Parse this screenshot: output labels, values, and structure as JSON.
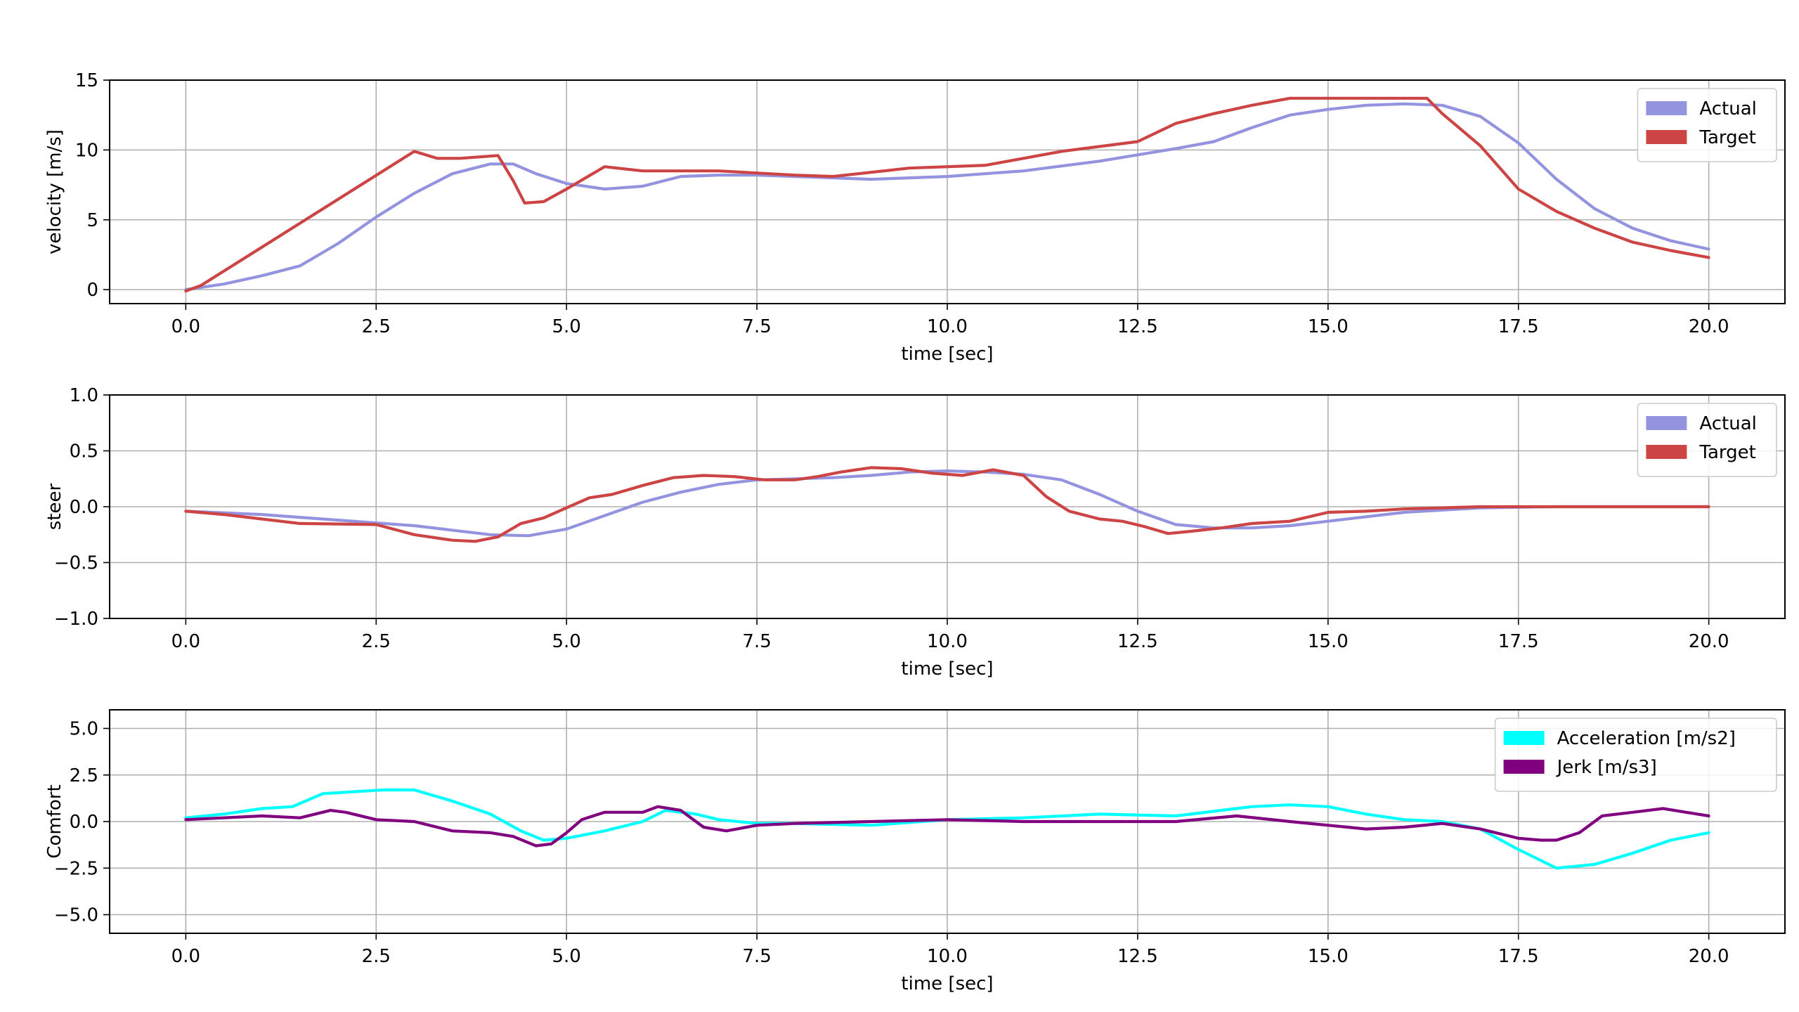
{
  "chart_data": [
    {
      "type": "line",
      "xlabel": "time [sec]",
      "ylabel": "velocity [m/s]",
      "xlim": [
        -1.0,
        21.0
      ],
      "ylim": [
        -1.0,
        15.0
      ],
      "xticks": [
        0.0,
        2.5,
        5.0,
        7.5,
        10.0,
        12.5,
        15.0,
        17.5,
        20.0
      ],
      "xtick_labels": [
        "0.0",
        "2.5",
        "5.0",
        "7.5",
        "10.0",
        "12.5",
        "15.0",
        "17.5",
        "20.0"
      ],
      "yticks": [
        0,
        5,
        10,
        15
      ],
      "ytick_labels": [
        "0",
        "5",
        "10",
        "15"
      ],
      "grid": true,
      "legend": "top-right",
      "series": [
        {
          "name": "Actual",
          "color": "#9393e0",
          "x": [
            0,
            0.5,
            1.0,
            1.5,
            2.0,
            2.5,
            3.0,
            3.5,
            4.0,
            4.3,
            4.6,
            5.0,
            5.5,
            6.0,
            6.5,
            7.0,
            7.5,
            8.0,
            9.0,
            10.0,
            11.0,
            12.0,
            13.0,
            13.5,
            14.0,
            14.5,
            15.0,
            15.5,
            16.0,
            16.5,
            17.0,
            17.5,
            18.0,
            18.5,
            19.0,
            19.5,
            20.0
          ],
          "y": [
            0,
            0.4,
            1.0,
            1.7,
            3.3,
            5.2,
            6.9,
            8.3,
            9.0,
            9.0,
            8.3,
            7.6,
            7.2,
            7.4,
            8.1,
            8.2,
            8.2,
            8.1,
            7.9,
            8.1,
            8.5,
            9.2,
            10.1,
            10.6,
            11.6,
            12.5,
            12.9,
            13.2,
            13.3,
            13.2,
            12.4,
            10.5,
            7.9,
            5.8,
            4.4,
            3.5,
            2.9
          ]
        },
        {
          "name": "Target",
          "color": "#cc4444",
          "x": [
            0,
            0.2,
            3.0,
            3.3,
            3.6,
            4.1,
            4.3,
            4.45,
            4.7,
            5.0,
            5.5,
            6.0,
            7.0,
            8.0,
            8.5,
            9.5,
            10.5,
            11.5,
            12.5,
            13.0,
            13.5,
            14.0,
            14.5,
            15.0,
            16.0,
            16.3,
            16.5,
            17.0,
            17.5,
            18.0,
            18.5,
            19.0,
            19.5,
            20.0
          ],
          "y": [
            -0.1,
            0.3,
            9.9,
            9.4,
            9.4,
            9.6,
            7.8,
            6.2,
            6.3,
            7.2,
            8.8,
            8.5,
            8.5,
            8.2,
            8.1,
            8.7,
            8.9,
            9.9,
            10.6,
            11.9,
            12.6,
            13.2,
            13.7,
            13.7,
            13.7,
            13.7,
            12.6,
            10.3,
            7.2,
            5.6,
            4.4,
            3.4,
            2.8,
            2.3
          ]
        }
      ]
    },
    {
      "type": "line",
      "xlabel": "time [sec]",
      "ylabel": "steer",
      "xlim": [
        -1.0,
        21.0
      ],
      "ylim": [
        -1.0,
        1.0
      ],
      "xticks": [
        0.0,
        2.5,
        5.0,
        7.5,
        10.0,
        12.5,
        15.0,
        17.5,
        20.0
      ],
      "xtick_labels": [
        "0.0",
        "2.5",
        "5.0",
        "7.5",
        "10.0",
        "12.5",
        "15.0",
        "17.5",
        "20.0"
      ],
      "yticks": [
        -1.0,
        -0.5,
        0.0,
        0.5,
        1.0
      ],
      "ytick_labels": [
        "−1.0",
        "−0.5",
        "0.0",
        "0.5",
        "1.0"
      ],
      "grid": true,
      "legend": "top-right",
      "series": [
        {
          "name": "Actual",
          "color": "#9393e0",
          "x": [
            0,
            1.0,
            2.0,
            3.0,
            3.5,
            4.0,
            4.5,
            5.0,
            5.5,
            6.0,
            6.5,
            7.0,
            7.5,
            8.0,
            8.5,
            9.0,
            9.5,
            10.0,
            10.5,
            11.0,
            11.5,
            12.0,
            12.5,
            13.0,
            13.5,
            14.0,
            14.5,
            15.0,
            15.5,
            16.0,
            17.0,
            18.0,
            19.0,
            20.0
          ],
          "y": [
            -0.04,
            -0.07,
            -0.12,
            -0.17,
            -0.21,
            -0.25,
            -0.26,
            -0.2,
            -0.08,
            0.04,
            0.13,
            0.2,
            0.24,
            0.25,
            0.26,
            0.28,
            0.31,
            0.32,
            0.31,
            0.29,
            0.24,
            0.11,
            -0.04,
            -0.16,
            -0.19,
            -0.19,
            -0.17,
            -0.13,
            -0.09,
            -0.05,
            -0.01,
            0.0,
            0.0,
            0.0
          ]
        },
        {
          "name": "Target",
          "color": "#cc4444",
          "x": [
            0,
            0.5,
            1.0,
            1.5,
            2.5,
            3.0,
            3.5,
            3.8,
            4.1,
            4.4,
            4.7,
            5.0,
            5.3,
            5.6,
            6.0,
            6.4,
            6.8,
            7.2,
            7.6,
            8.0,
            8.3,
            8.6,
            9.0,
            9.4,
            9.8,
            10.2,
            10.6,
            11.0,
            11.3,
            11.6,
            12.0,
            12.3,
            12.6,
            12.9,
            13.2,
            13.6,
            14.0,
            14.5,
            15.0,
            15.5,
            16.0,
            16.5,
            17.0,
            18.0,
            20.0
          ],
          "y": [
            -0.04,
            -0.07,
            -0.11,
            -0.15,
            -0.16,
            -0.25,
            -0.3,
            -0.31,
            -0.27,
            -0.15,
            -0.1,
            -0.01,
            0.08,
            0.11,
            0.19,
            0.26,
            0.28,
            0.27,
            0.24,
            0.24,
            0.27,
            0.31,
            0.35,
            0.34,
            0.3,
            0.28,
            0.33,
            0.28,
            0.09,
            -0.04,
            -0.11,
            -0.13,
            -0.18,
            -0.24,
            -0.22,
            -0.19,
            -0.15,
            -0.13,
            -0.05,
            -0.04,
            -0.02,
            -0.01,
            0.0,
            0.0,
            0.0
          ]
        }
      ]
    },
    {
      "type": "line",
      "xlabel": "time [sec]",
      "ylabel": "Comfort",
      "xlim": [
        -1.0,
        21.0
      ],
      "ylim": [
        -6.0,
        6.0
      ],
      "xticks": [
        0.0,
        2.5,
        5.0,
        7.5,
        10.0,
        12.5,
        15.0,
        17.5,
        20.0
      ],
      "xtick_labels": [
        "0.0",
        "2.5",
        "5.0",
        "7.5",
        "10.0",
        "12.5",
        "15.0",
        "17.5",
        "20.0"
      ],
      "yticks": [
        -5.0,
        -2.5,
        0.0,
        2.5,
        5.0
      ],
      "ytick_labels": [
        "−5.0",
        "−2.5",
        "0.0",
        "2.5",
        "5.0"
      ],
      "grid": true,
      "legend": "top-right",
      "series": [
        {
          "name": "Acceleration [m/s2]",
          "color": "#00ffff",
          "x": [
            0,
            0.5,
            1.0,
            1.4,
            1.8,
            2.2,
            2.6,
            3.0,
            3.5,
            4.0,
            4.4,
            4.7,
            5.0,
            5.5,
            6.0,
            6.3,
            6.7,
            7.0,
            7.5,
            8.0,
            9.0,
            10.0,
            11.0,
            12.0,
            13.0,
            14.0,
            14.5,
            15.0,
            15.5,
            16.0,
            16.5,
            17.0,
            17.5,
            18.0,
            18.5,
            19.0,
            19.5,
            20.0
          ],
          "y": [
            0.2,
            0.4,
            0.7,
            0.8,
            1.5,
            1.6,
            1.7,
            1.7,
            1.1,
            0.4,
            -0.5,
            -1.0,
            -0.9,
            -0.5,
            0.0,
            0.6,
            0.4,
            0.1,
            -0.1,
            -0.1,
            -0.2,
            0.1,
            0.2,
            0.4,
            0.3,
            0.8,
            0.9,
            0.8,
            0.4,
            0.1,
            0.0,
            -0.4,
            -1.5,
            -2.5,
            -2.3,
            -1.7,
            -1.0,
            -0.6
          ]
        },
        {
          "name": "Jerk [m/s3]",
          "color": "#800080",
          "x": [
            0,
            0.5,
            1.0,
            1.5,
            1.9,
            2.1,
            2.5,
            3.0,
            3.5,
            4.0,
            4.3,
            4.6,
            4.8,
            5.0,
            5.2,
            5.5,
            6.0,
            6.2,
            6.5,
            6.8,
            7.1,
            7.5,
            8.0,
            9.0,
            10.0,
            11.0,
            12.0,
            13.0,
            13.8,
            14.5,
            15.0,
            15.5,
            16.0,
            16.5,
            17.0,
            17.5,
            17.8,
            18.0,
            18.3,
            18.6,
            19.0,
            19.4,
            19.7,
            20.0
          ],
          "y": [
            0.1,
            0.2,
            0.3,
            0.2,
            0.6,
            0.5,
            0.1,
            0.0,
            -0.5,
            -0.6,
            -0.8,
            -1.3,
            -1.2,
            -0.6,
            0.1,
            0.5,
            0.5,
            0.8,
            0.6,
            -0.3,
            -0.5,
            -0.2,
            -0.1,
            0.0,
            0.1,
            0.0,
            0.0,
            0.0,
            0.3,
            0.0,
            -0.2,
            -0.4,
            -0.3,
            -0.1,
            -0.4,
            -0.9,
            -1.0,
            -1.0,
            -0.6,
            0.3,
            0.5,
            0.7,
            0.5,
            0.3
          ]
        }
      ]
    }
  ]
}
